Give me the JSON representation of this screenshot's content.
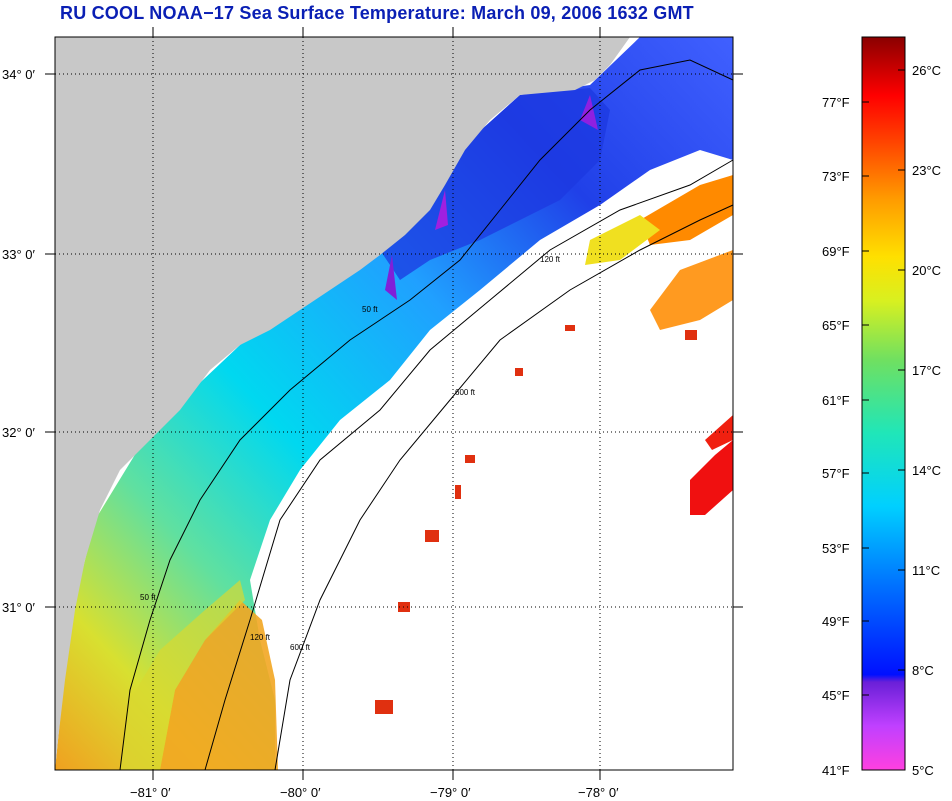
{
  "title": "RU COOL  NOAA−17  Sea Surface Temperature:  March 09, 2006 1632 GMT",
  "latitude_labels": [
    "34° 0′",
    "33° 0′",
    "32° 0′",
    "31° 0′"
  ],
  "longitude_labels": [
    "−81° 0′",
    "−80° 0′",
    "−79° 0′",
    "−78° 0′"
  ],
  "contour_labels": [
    "50 ft",
    "120 ft",
    "600 ft"
  ],
  "colorbar": {
    "fahrenheit_labels": [
      "77°F",
      "73°F",
      "69°F",
      "65°F",
      "61°F",
      "57°F",
      "53°F",
      "49°F",
      "45°F",
      "41°F"
    ],
    "celsius_labels": [
      "26°C",
      "23°C",
      "20°C",
      "17°C",
      "14°C",
      "11°C",
      "8°C",
      "5°C"
    ]
  },
  "colors": {
    "title": "#0a1fb4",
    "land": "#c8c8c8",
    "no_data": "#ffffff",
    "gridline": "#000000"
  }
}
